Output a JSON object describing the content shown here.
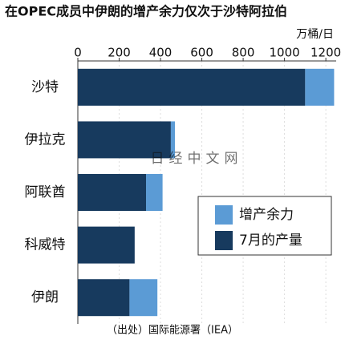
{
  "chart_data": {
    "type": "bar",
    "orientation": "horizontal",
    "stacked": true,
    "title": "在OPEC成员中伊朗的增产余力仅次于沙特阿拉伯",
    "unit": "万桶/日",
    "source": "（出处）国际能源署（IEA）",
    "watermark": "日经中文网",
    "categories": [
      "沙特",
      "伊拉克",
      "阿联酋",
      "科威特",
      "伊朗"
    ],
    "series": [
      {
        "name": "7月的产量",
        "color": "#173a5e",
        "values": [
          1100,
          450,
          330,
          275,
          250
        ]
      },
      {
        "name": "增产余力",
        "color": "#5b9bd5",
        "values": [
          140,
          20,
          80,
          0,
          135
        ]
      }
    ],
    "xlim": [
      0,
      1250
    ],
    "xticks": [
      0,
      200,
      400,
      600,
      800,
      1000,
      1200
    ],
    "grid": true,
    "legend_position": "center-right"
  }
}
